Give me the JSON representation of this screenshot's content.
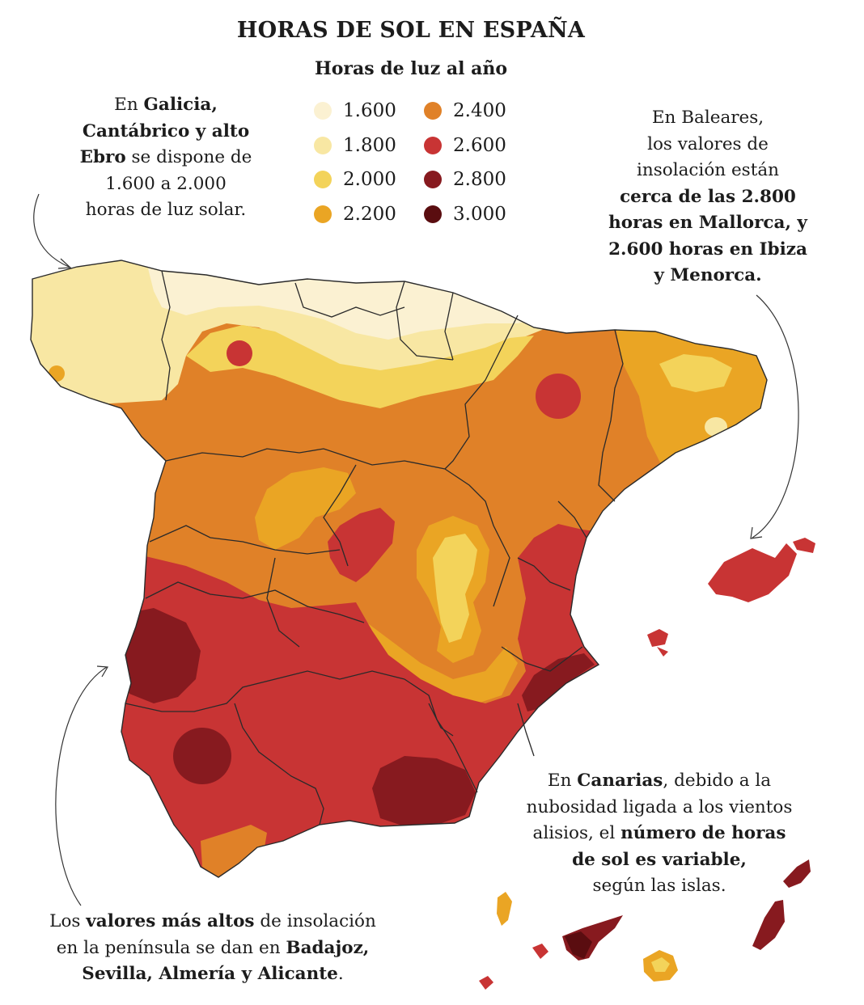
{
  "title": "HORAS DE SOL EN ESPAÑA",
  "legend": {
    "title": "Horas de luz al año",
    "items": [
      {
        "label": "1.600",
        "color": "#fbf1d2"
      },
      {
        "label": "1.800",
        "color": "#f8e7a3"
      },
      {
        "label": "2.000",
        "color": "#f3d35a"
      },
      {
        "label": "2.200",
        "color": "#eaa524"
      },
      {
        "label": "2.400",
        "color": "#e08128"
      },
      {
        "label": "2.600",
        "color": "#c83434"
      },
      {
        "label": "2.800",
        "color": "#871a1f"
      },
      {
        "label": "3.000",
        "color": "#5a0d10"
      }
    ]
  },
  "annotations": {
    "galicia": {
      "t1": "En ",
      "b1": "Galicia,",
      "b2": "Cantábrico y alto",
      "b3": "Ebro",
      "t2": " se dispone de",
      "t3": "1.600 a 2.000",
      "t4": "horas de luz solar."
    },
    "baleares": {
      "t1": "En Baleares,",
      "t2": "los valores de",
      "t3": "insolación están",
      "b1": "cerca de las 2.800",
      "b2": "horas en Mallorca, y",
      "b3": "2.600 horas en Ibiza",
      "b4": "y Menorca."
    },
    "canarias": {
      "t1": "En ",
      "b1": "Canarias",
      "t2": ", debido a la",
      "t3": "nubosidad ligada a los vientos",
      "t4": "alisios, el ",
      "b2": "número de horas",
      "b3": "de sol es variable,",
      "t5": "según las islas."
    },
    "altos": {
      "t1": "Los ",
      "b1": "valores más altos",
      "t2": " de insolación",
      "t3": "en la península se dan en ",
      "b2": "Badajoz,",
      "b3": "Sevilla, Almería y Alicante",
      "t4": "."
    }
  }
}
